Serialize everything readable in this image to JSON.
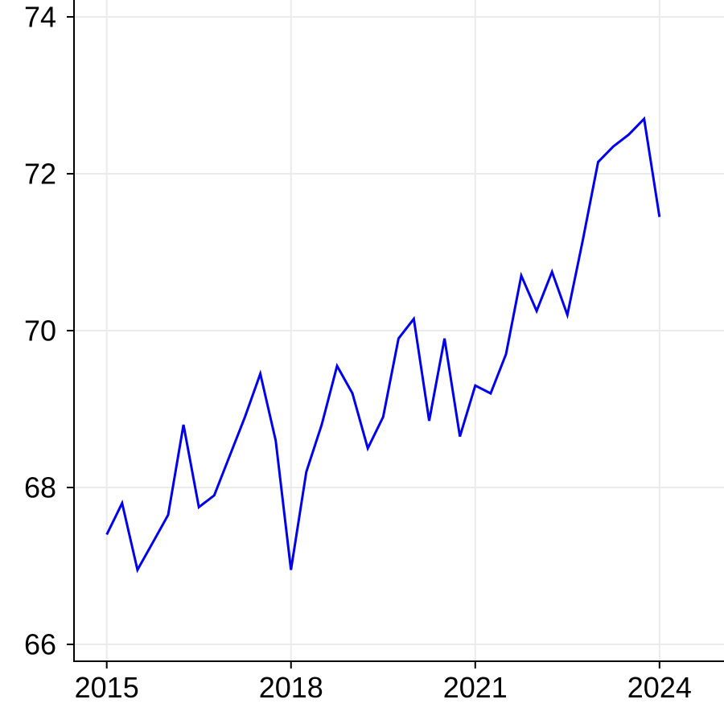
{
  "chart_data": {
    "type": "line",
    "title": "",
    "xlabel": "",
    "ylabel": "",
    "grid": true,
    "legend": "none",
    "xlim": [
      2014.467,
      2025.05
    ],
    "ylim": [
      65.785,
      74.215
    ],
    "x_ticks": {
      "values": [
        2015,
        2018,
        2021,
        2024
      ],
      "labels": [
        "2015",
        "2018",
        "2021",
        "2024"
      ]
    },
    "y_ticks": {
      "values": [
        66,
        68,
        70,
        72,
        74
      ],
      "labels": [
        "66",
        "68",
        "70",
        "72",
        "74"
      ]
    },
    "series": [
      {
        "name": "series-1",
        "color": "#0000EE",
        "x": [
          2015.0,
          2015.25,
          2015.5,
          2015.75,
          2016.0,
          2016.25,
          2016.5,
          2016.75,
          2017.0,
          2017.25,
          2017.5,
          2017.75,
          2018.0,
          2018.25,
          2018.5,
          2018.75,
          2019.0,
          2019.25,
          2019.5,
          2019.75,
          2020.0,
          2020.25,
          2020.5,
          2020.75,
          2021.0,
          2021.25,
          2021.5,
          2021.75,
          2022.0,
          2022.25,
          2022.5,
          2022.75,
          2023.0,
          2023.25,
          2023.5,
          2023.75,
          2024.0
        ],
        "values": [
          67.4,
          67.8,
          66.95,
          67.3,
          67.65,
          68.8,
          67.75,
          67.9,
          68.4,
          68.9,
          69.45,
          68.6,
          66.95,
          68.2,
          68.8,
          69.55,
          69.2,
          68.5,
          68.9,
          69.9,
          70.15,
          68.85,
          69.9,
          68.65,
          69.3,
          69.2,
          69.7,
          70.7,
          70.25,
          70.75,
          70.2,
          71.15,
          72.15,
          72.35,
          72.5,
          72.7,
          71.45
        ]
      }
    ],
    "colors": {
      "line": "#0000EE",
      "grid": "#ebebeb",
      "axis": "#000000",
      "tick_text": "#000000",
      "background": "#ffffff"
    }
  }
}
